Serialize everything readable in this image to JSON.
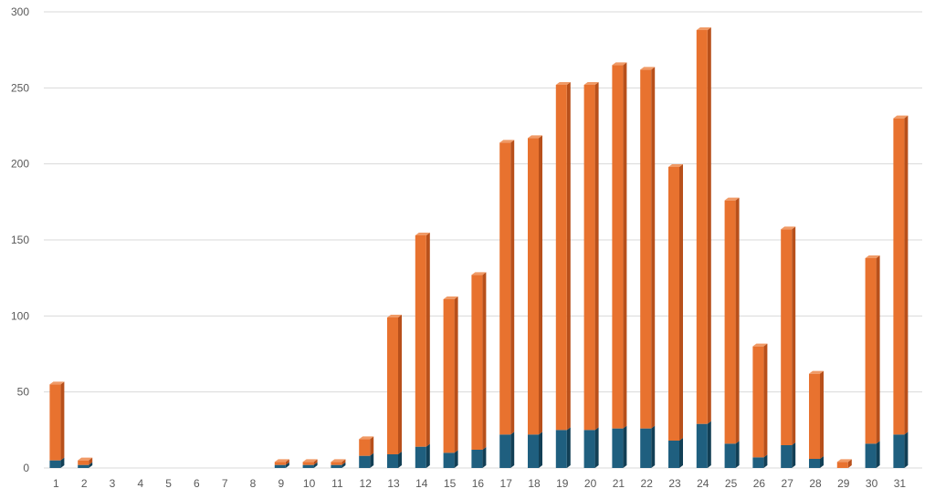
{
  "chart_data": {
    "type": "bar",
    "stacked": true,
    "style": "3d-column",
    "categories": [
      "1",
      "2",
      "3",
      "4",
      "5",
      "6",
      "7",
      "8",
      "9",
      "10",
      "11",
      "12",
      "13",
      "14",
      "15",
      "16",
      "17",
      "18",
      "19",
      "20",
      "21",
      "22",
      "23",
      "24",
      "25",
      "26",
      "27",
      "28",
      "29",
      "30",
      "31"
    ],
    "series": [
      {
        "color": "#1f5f7f",
        "values": [
          5,
          2,
          0,
          0,
          0,
          0,
          0,
          0,
          2,
          2,
          2,
          8,
          9,
          14,
          10,
          12,
          22,
          22,
          25,
          25,
          26,
          26,
          18,
          29,
          16,
          7,
          15,
          6,
          0,
          16,
          22
        ]
      },
      {
        "color": "#e8722f",
        "values": [
          50,
          3,
          0,
          0,
          0,
          0,
          0,
          0,
          2,
          2,
          2,
          11,
          90,
          139,
          101,
          115,
          192,
          195,
          227,
          227,
          239,
          236,
          180,
          259,
          160,
          73,
          142,
          56,
          4,
          122,
          208
        ]
      }
    ],
    "ylim": [
      0,
      300
    ],
    "yticks": [
      0,
      50,
      100,
      150,
      200,
      250,
      300
    ],
    "grid": true,
    "legend": "none",
    "colors": {
      "grid": "#d9d9d9",
      "tick_text": "#595959",
      "lower_side": "#123f55",
      "upper_side": "#b8501b",
      "upper_top": "#f09a66"
    }
  }
}
